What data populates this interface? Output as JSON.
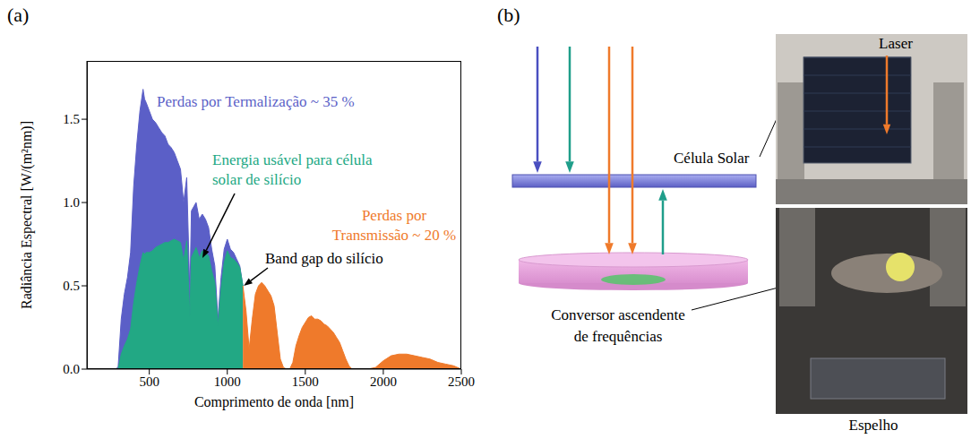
{
  "panel_labels": {
    "a": "(a)",
    "b": "(b)"
  },
  "chart_data": {
    "type": "area",
    "x_label": "Comprimento de onda [nm]",
    "y_label": "Radiância Espectral  [W/(m²nm)]",
    "x": [
      280,
      300,
      320,
      340,
      360,
      380,
      400,
      420,
      440,
      460,
      470,
      480,
      500,
      520,
      540,
      560,
      580,
      600,
      620,
      640,
      660,
      680,
      700,
      720,
      740,
      760,
      770,
      800,
      820,
      840,
      860,
      880,
      900,
      920,
      940,
      960,
      980,
      1000,
      1020,
      1040,
      1060,
      1080,
      1100,
      1120,
      1140,
      1160,
      1180,
      1200,
      1220,
      1240,
      1260,
      1280,
      1300,
      1320,
      1340,
      1360,
      1380,
      1400,
      1420,
      1440,
      1460,
      1480,
      1500,
      1520,
      1540,
      1560,
      1580,
      1600,
      1620,
      1640,
      1660,
      1680,
      1700,
      1720,
      1740,
      1760,
      1780,
      1800,
      1850,
      1900,
      1950,
      2000,
      2050,
      2100,
      2150,
      2200,
      2250,
      2300,
      2350,
      2400,
      2450,
      2500
    ],
    "series": [
      {
        "name": "Perdas por Termalização ~ 35 %",
        "color": "#5b5fc7",
        "values": [
          0,
          0.01,
          0.3,
          0.45,
          0.55,
          0.7,
          1.1,
          1.35,
          1.55,
          1.68,
          1.62,
          1.6,
          1.55,
          1.5,
          1.48,
          1.45,
          1.42,
          1.4,
          1.35,
          1.33,
          1.3,
          1.25,
          1.2,
          1.0,
          1.15,
          0.45,
          0.95,
          1.0,
          0.9,
          0.93,
          0.9,
          0.85,
          0.72,
          0.62,
          0.3,
          0.55,
          0.72,
          0.78,
          0.72,
          0.7,
          0.66,
          0.62,
          0.5,
          null,
          null,
          null,
          null,
          null,
          null,
          null,
          null,
          null,
          null,
          null,
          null,
          null,
          null,
          null,
          null,
          null,
          null,
          null,
          null,
          null,
          null,
          null,
          null,
          null,
          null,
          null,
          null,
          null,
          null,
          null,
          null,
          null,
          null,
          null,
          null,
          null,
          null,
          null,
          null,
          null,
          null,
          null,
          null,
          null,
          null,
          null,
          null,
          null
        ]
      },
      {
        "name": "Energia usável para célula solar de silício",
        "color": "#22a884",
        "values": [
          0,
          0,
          0.09,
          0.14,
          0.18,
          0.24,
          0.4,
          0.52,
          0.62,
          0.7,
          0.69,
          0.7,
          0.7,
          0.71,
          0.73,
          0.74,
          0.75,
          0.76,
          0.76,
          0.77,
          0.78,
          0.77,
          0.76,
          0.65,
          0.77,
          0.31,
          0.67,
          0.73,
          0.67,
          0.71,
          0.7,
          0.68,
          0.59,
          0.52,
          0.26,
          0.48,
          0.64,
          0.71,
          0.67,
          0.66,
          0.64,
          0.61,
          0.5,
          null,
          null,
          null,
          null,
          null,
          null,
          null,
          null,
          null,
          null,
          null,
          null,
          null,
          null,
          null,
          null,
          null,
          null,
          null,
          null,
          null,
          null,
          null,
          null,
          null,
          null,
          null,
          null,
          null,
          null,
          null,
          null,
          null,
          null,
          null,
          null,
          null,
          null,
          null,
          null,
          null,
          null,
          null,
          null,
          null,
          null,
          null,
          null,
          null
        ]
      },
      {
        "name": "Perdas por Transmissão ~ 20 %",
        "color": "#ef7a2b",
        "values": [
          null,
          null,
          null,
          null,
          null,
          null,
          null,
          null,
          null,
          null,
          null,
          null,
          null,
          null,
          null,
          null,
          null,
          null,
          null,
          null,
          null,
          null,
          null,
          null,
          null,
          null,
          null,
          null,
          null,
          null,
          null,
          null,
          null,
          null,
          null,
          null,
          null,
          null,
          null,
          null,
          null,
          null,
          0.5,
          0.35,
          0.12,
          0.3,
          0.45,
          0.5,
          0.52,
          0.5,
          0.47,
          0.44,
          0.38,
          0.22,
          0.06,
          0.01,
          0,
          0,
          0.04,
          0.14,
          0.2,
          0.25,
          0.28,
          0.31,
          0.32,
          0.3,
          0.3,
          0.29,
          0.27,
          0.26,
          0.24,
          0.22,
          0.19,
          0.16,
          0.11,
          0.06,
          0.02,
          0,
          0,
          0,
          0.01,
          0.05,
          0.08,
          0.09,
          0.09,
          0.08,
          0.07,
          0.06,
          0.04,
          0.03,
          0.02,
          0
        ]
      }
    ],
    "xlim": [
      100,
      2500
    ],
    "xticks": [
      500,
      1000,
      1500,
      2000,
      2500
    ],
    "ylim": [
      0,
      1.85
    ],
    "yticks": [
      {
        "value": 0,
        "label": "0.0"
      },
      {
        "value": 0.5,
        "label": "0.5"
      },
      {
        "value": 1,
        "label": "1.0"
      },
      {
        "value": 1.5,
        "label": "1.5"
      }
    ],
    "annotations": [
      {
        "text": "Band gap do silício",
        "x": 1100,
        "y": 0.5
      }
    ]
  },
  "diagram": {
    "solar_cell": "Célula Solar",
    "upconverter": "Conversor ascendente de frequências",
    "laser": "Laser",
    "mirror": "Espelho"
  }
}
